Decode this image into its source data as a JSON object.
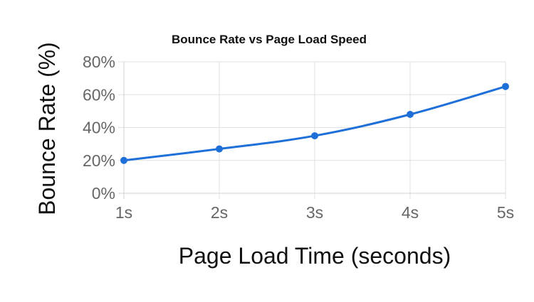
{
  "chart_data": {
    "type": "line",
    "title": "Bounce Rate vs Page Load Speed",
    "xlabel": "Page Load Time (seconds)",
    "ylabel": "Bounce Rate (%)",
    "categories": [
      "1s",
      "2s",
      "3s",
      "4s",
      "5s"
    ],
    "series": [
      {
        "values": [
          20,
          27,
          35,
          48,
          65
        ]
      }
    ],
    "ylim": [
      0,
      80
    ],
    "yticks": [
      0,
      20,
      40,
      60,
      80
    ],
    "ytick_labels": [
      "0%",
      "20%",
      "40%",
      "60%",
      "80%"
    ],
    "grid": true,
    "legend": "none",
    "colors": {
      "line": "#1f6fd8",
      "point": "#1f6fd8"
    }
  }
}
